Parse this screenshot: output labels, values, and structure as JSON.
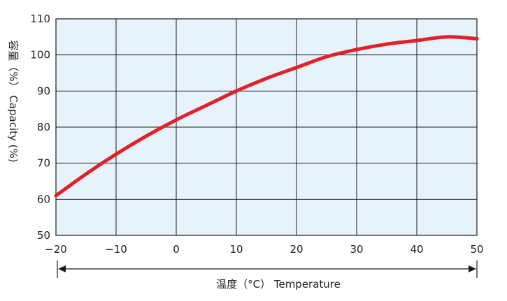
{
  "chart_data": {
    "type": "line",
    "xlabel": "温度（°C） Temperature",
    "ylabel": "容量（%） Capacity (%)",
    "xlim": [
      -20,
      50
    ],
    "ylim": [
      50,
      110
    ],
    "grid": true,
    "x_ticks": [
      "−20",
      "−10",
      "0",
      "10",
      "20",
      "30",
      "40",
      "50"
    ],
    "y_ticks": [
      "50",
      "60",
      "70",
      "80",
      "90",
      "100",
      "110"
    ],
    "series": [
      {
        "color": "#e1202a",
        "x": [
          -20,
          -15,
          -10,
          -5,
          0,
          5,
          10,
          15,
          20,
          25,
          30,
          35,
          40,
          45,
          50
        ],
        "y": [
          61,
          67,
          72.5,
          77.5,
          82,
          86,
          90,
          93.5,
          96.5,
          99.5,
          101.5,
          103,
          104,
          105,
          104.5
        ]
      }
    ],
    "colors": {
      "plot_background": "#e6f3fb",
      "grid": "#1a1a1a",
      "line": "#e1202a"
    }
  }
}
